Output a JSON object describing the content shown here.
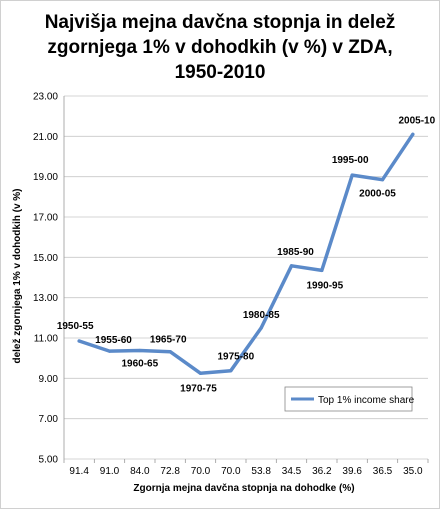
{
  "chart_data": {
    "type": "line",
    "title_lines": [
      "Najvišja mejna davčna stopnja in delež",
      "zgornjega 1% v dohodkih (v %) v ZDA,",
      "1950-2010"
    ],
    "xlabel": "Zgornja mejna davčna stopnja na dohodke (%)",
    "ylabel": "delež zgornjega 1% v dohodkih (v %)",
    "categories": [
      "91.4",
      "91.0",
      "84.0",
      "72.8",
      "70.0",
      "70.0",
      "53.8",
      "34.5",
      "36.2",
      "39.6",
      "36.5",
      "35.0"
    ],
    "y_ticks": [
      "5.00",
      "7.00",
      "9.00",
      "11.00",
      "13.00",
      "15.00",
      "17.00",
      "19.00",
      "21.00",
      "23.00"
    ],
    "ylim": [
      5,
      23
    ],
    "grid": "horizontal",
    "legend_position": "bottom-right",
    "series": [
      {
        "name": "Top 1% income share",
        "color": "#5b8ac9",
        "values": [
          10.85,
          10.35,
          10.38,
          10.32,
          9.25,
          9.38,
          11.5,
          14.58,
          14.35,
          19.08,
          18.85,
          21.1
        ],
        "labels": [
          "1950-55",
          "1955-60",
          "1960-65",
          "1965-70",
          "1970-75",
          "1975-80",
          "1980-85",
          "1985-90",
          "1990-95",
          "1995-00",
          "2000-05",
          "2005-10"
        ]
      }
    ]
  }
}
